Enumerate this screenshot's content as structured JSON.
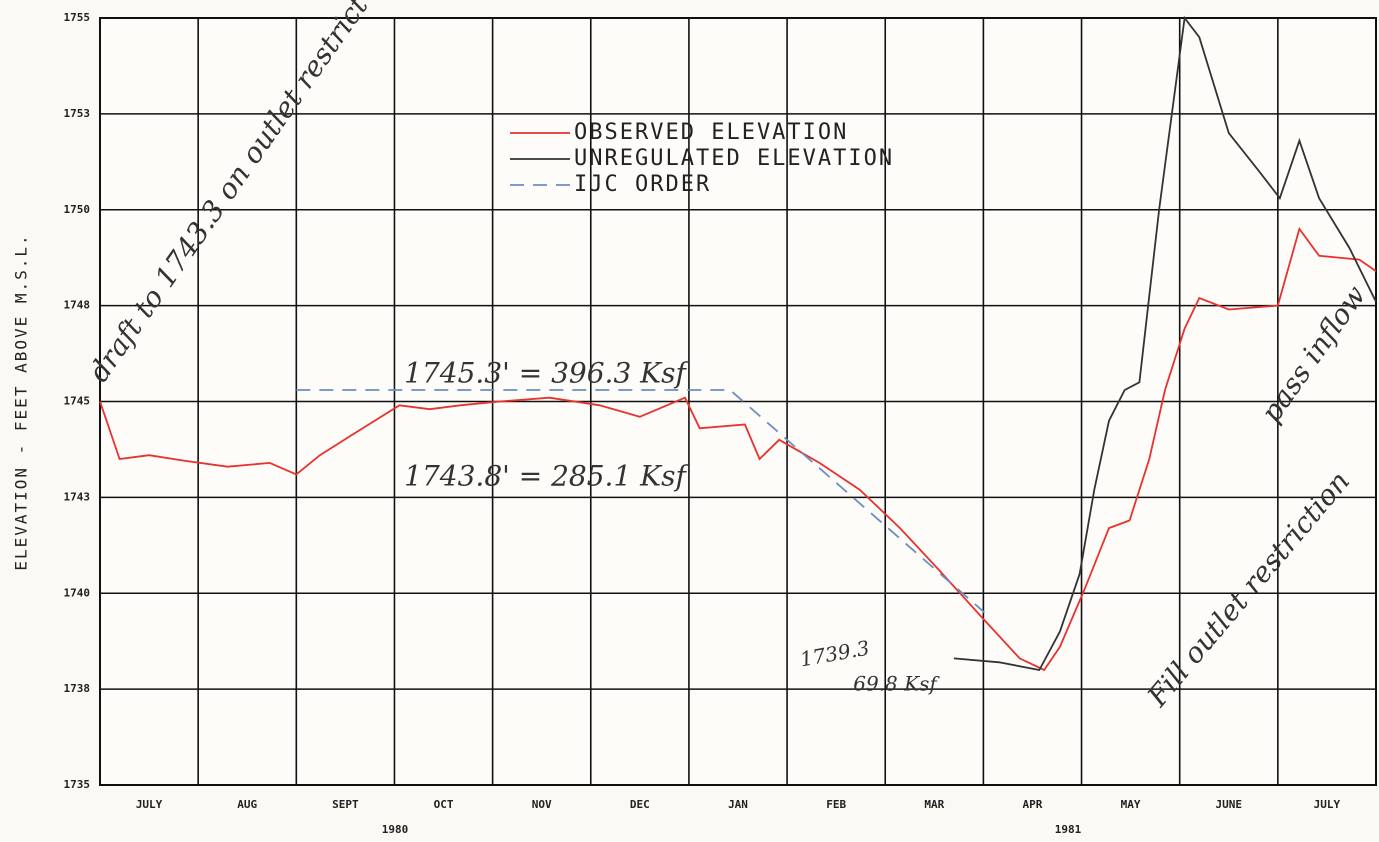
{
  "chart_data": {
    "type": "line",
    "y_label": "ELEVATION - FEET ABOVE M.S.L.",
    "categories": [
      "JULY",
      "AUG",
      "SEPT",
      "OCT",
      "NOV",
      "DEC",
      "JAN",
      "FEB",
      "MAR",
      "APR",
      "MAY",
      "JUNE",
      "JULY"
    ],
    "years": [
      "1980",
      "1981"
    ],
    "xlim": [
      0,
      13
    ],
    "ylim": [
      1735,
      1755
    ],
    "yticks": [
      1735,
      {
        "value": 1737.5,
        "label": "1738"
      },
      1740,
      {
        "value": 1742.5,
        "label": "1743"
      },
      1745,
      {
        "value": 1747.5,
        "label": "1748"
      },
      1750,
      {
        "value": 1752.5,
        "label": "1753"
      },
      1755
    ],
    "grid": true,
    "legend": "upper center",
    "series": [
      {
        "name": "OBSERVED ELEVATION",
        "color": "#e8322e",
        "dash": false,
        "x": [
          0,
          0.2,
          0.5,
          0.87,
          1.3,
          1.73,
          2.0,
          2.24,
          2.55,
          3.05,
          3.36,
          3.67,
          4.07,
          4.58,
          5.09,
          5.5,
          5.96,
          6.11,
          6.57,
          6.72,
          6.92,
          7.33,
          7.74,
          8.15,
          8.55,
          9.01,
          9.37,
          9.62,
          9.78,
          10.03,
          10.28,
          10.49,
          10.69,
          10.85,
          11.05,
          11.2,
          11.5,
          12.0,
          12.22,
          12.42,
          12.83,
          13.0
        ],
        "values": [
          1745.0,
          1743.5,
          1743.6,
          1743.45,
          1743.3,
          1743.4,
          1743.1,
          1743.6,
          1744.1,
          1744.9,
          1744.8,
          1744.9,
          1745.0,
          1745.1,
          1744.9,
          1744.6,
          1745.1,
          1744.3,
          1744.4,
          1743.5,
          1744.0,
          1743.4,
          1742.7,
          1741.7,
          1740.6,
          1739.3,
          1738.3,
          1738.0,
          1738.6,
          1740.1,
          1741.7,
          1741.9,
          1743.5,
          1745.3,
          1746.9,
          1747.7,
          1747.4,
          1747.5,
          1749.5,
          1748.8,
          1748.7,
          1748.4
        ]
      },
      {
        "name": "UNREGULATED ELEVATION",
        "color": "#333333",
        "dash": false,
        "x": [
          8.7,
          9.16,
          9.57,
          9.78,
          9.98,
          10.13,
          10.28,
          10.44,
          10.59,
          10.79,
          11.05,
          11.2,
          11.5,
          11.81,
          12.02,
          12.22,
          12.42,
          12.73,
          13.0
        ],
        "values": [
          1738.3,
          1738.2,
          1738.0,
          1739.0,
          1740.5,
          1742.7,
          1744.5,
          1745.3,
          1745.5,
          1750.0,
          1755.0,
          1754.5,
          1752.0,
          1751.0,
          1750.3,
          1751.8,
          1750.3,
          1749.0,
          1747.6
        ]
      },
      {
        "name": "IJC ORDER",
        "color": "#6a8fc0",
        "dash": true,
        "x": [
          2.0,
          6.42,
          9.01
        ],
        "values": [
          1745.3,
          1745.3,
          1739.5
        ]
      }
    ],
    "annotations": [
      "draft to 1743.3 on outlet restrict",
      "1745.3' = 396.3 Ksf",
      "1743.8' = 285.1 Ksf",
      "1739.3",
      "69.8 Ksf",
      "Fill outlet restriction",
      "pass inflow"
    ]
  }
}
